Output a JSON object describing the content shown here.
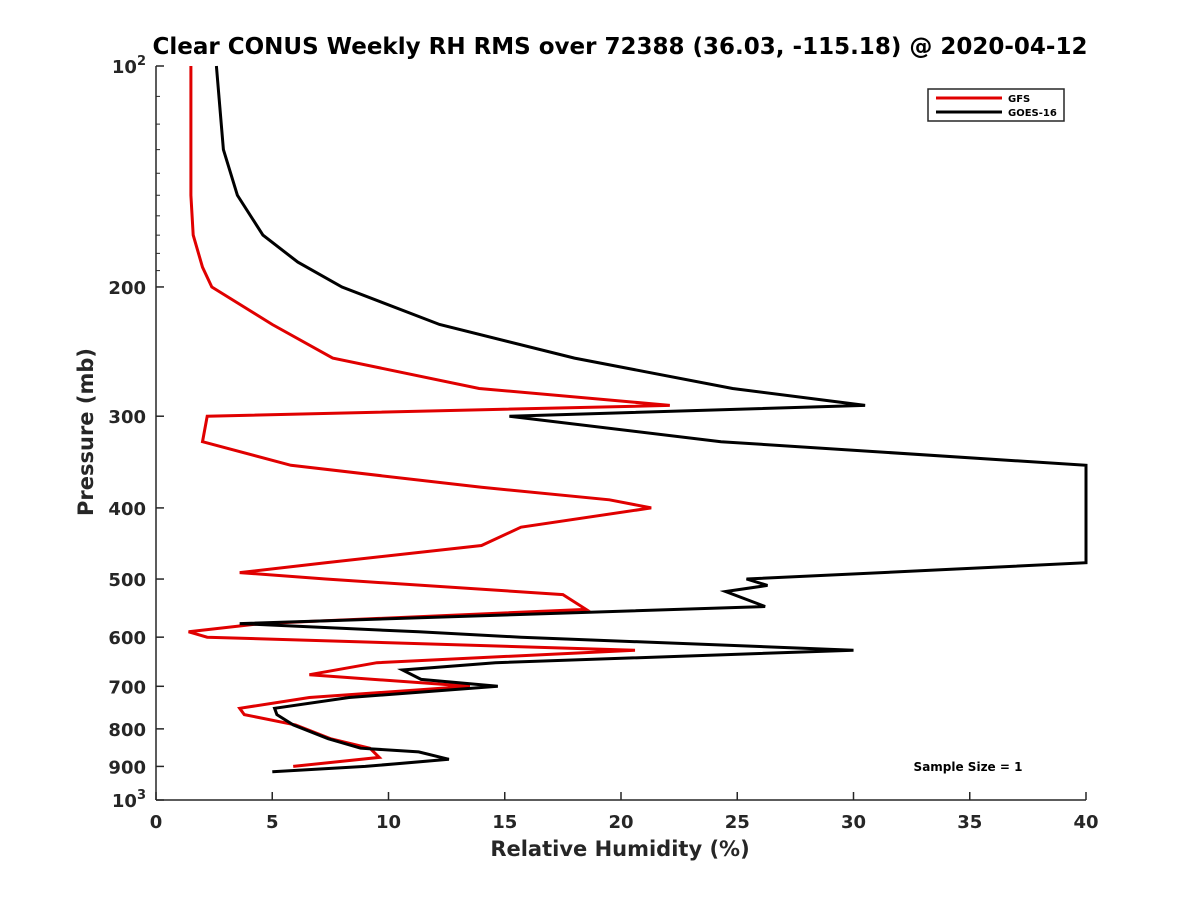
{
  "chart_data": {
    "type": "line",
    "title": "Clear CONUS Weekly RH RMS over 72388 (36.03, -115.18) @ 2020-04-12",
    "xlabel": "Relative Humidity (%)",
    "ylabel": "Pressure (mb)",
    "xlim": [
      0,
      40
    ],
    "ylim": [
      100,
      1000
    ],
    "yscale": "log",
    "y_reversed": true,
    "grid": false,
    "legend_position": "top-right",
    "x_ticks": [
      "0",
      "5",
      "10",
      "15",
      "20",
      "25",
      "30",
      "35",
      "40"
    ],
    "y_ticks": [
      {
        "value": 100,
        "base": "10",
        "exp": "2"
      },
      {
        "value": 200,
        "label": "200"
      },
      {
        "value": 300,
        "label": "300"
      },
      {
        "value": 400,
        "label": "400"
      },
      {
        "value": 500,
        "label": "500"
      },
      {
        "value": 600,
        "label": "600"
      },
      {
        "value": 700,
        "label": "700"
      },
      {
        "value": 800,
        "label": "800"
      },
      {
        "value": 900,
        "label": "900"
      },
      {
        "value": 1000,
        "base": "10",
        "exp": "3"
      }
    ],
    "annotation": "Sample Size = 1",
    "series": [
      {
        "name": "GFS",
        "color": "#e00000",
        "points": [
          {
            "x": 1.5,
            "y": 100
          },
          {
            "x": 1.5,
            "y": 115
          },
          {
            "x": 1.5,
            "y": 130
          },
          {
            "x": 1.5,
            "y": 150
          },
          {
            "x": 1.6,
            "y": 170
          },
          {
            "x": 2.0,
            "y": 188
          },
          {
            "x": 2.4,
            "y": 200
          },
          {
            "x": 5.0,
            "y": 225
          },
          {
            "x": 7.6,
            "y": 250
          },
          {
            "x": 13.9,
            "y": 275
          },
          {
            "x": 22.1,
            "y": 290
          },
          {
            "x": 2.2,
            "y": 300
          },
          {
            "x": 2.0,
            "y": 325
          },
          {
            "x": 5.8,
            "y": 350
          },
          {
            "x": 14.0,
            "y": 375
          },
          {
            "x": 19.5,
            "y": 390
          },
          {
            "x": 21.3,
            "y": 400
          },
          {
            "x": 15.7,
            "y": 425
          },
          {
            "x": 14.0,
            "y": 450
          },
          {
            "x": 7.3,
            "y": 475
          },
          {
            "x": 3.6,
            "y": 490
          },
          {
            "x": 7.3,
            "y": 500
          },
          {
            "x": 17.5,
            "y": 525
          },
          {
            "x": 18.5,
            "y": 550
          },
          {
            "x": 4.5,
            "y": 575
          },
          {
            "x": 1.4,
            "y": 590
          },
          {
            "x": 2.2,
            "y": 600
          },
          {
            "x": 20.6,
            "y": 625
          },
          {
            "x": 9.5,
            "y": 650
          },
          {
            "x": 6.6,
            "y": 675
          },
          {
            "x": 13.5,
            "y": 700
          },
          {
            "x": 6.6,
            "y": 725
          },
          {
            "x": 3.6,
            "y": 750
          },
          {
            "x": 3.8,
            "y": 765
          },
          {
            "x": 6.0,
            "y": 790
          },
          {
            "x": 7.5,
            "y": 825
          },
          {
            "x": 9.2,
            "y": 850
          },
          {
            "x": 9.6,
            "y": 875
          },
          {
            "x": 5.9,
            "y": 900
          }
        ]
      },
      {
        "name": "GOES-16",
        "color": "#000000",
        "points": [
          {
            "x": 2.6,
            "y": 100
          },
          {
            "x": 2.9,
            "y": 130
          },
          {
            "x": 3.5,
            "y": 150
          },
          {
            "x": 4.6,
            "y": 170
          },
          {
            "x": 6.1,
            "y": 185
          },
          {
            "x": 8.0,
            "y": 200
          },
          {
            "x": 12.2,
            "y": 225
          },
          {
            "x": 18.0,
            "y": 250
          },
          {
            "x": 24.8,
            "y": 275
          },
          {
            "x": 30.5,
            "y": 290
          },
          {
            "x": 15.2,
            "y": 300
          },
          {
            "x": 24.3,
            "y": 325
          },
          {
            "x": 40.0,
            "y": 350
          },
          {
            "x": 40.0,
            "y": 475
          },
          {
            "x": 34.2,
            "y": 485
          },
          {
            "x": 25.4,
            "y": 500
          },
          {
            "x": 26.3,
            "y": 510
          },
          {
            "x": 24.5,
            "y": 520
          },
          {
            "x": 26.2,
            "y": 545
          },
          {
            "x": 3.6,
            "y": 575
          },
          {
            "x": 11.3,
            "y": 590
          },
          {
            "x": 15.7,
            "y": 600
          },
          {
            "x": 30.0,
            "y": 625
          },
          {
            "x": 14.6,
            "y": 650
          },
          {
            "x": 10.6,
            "y": 665
          },
          {
            "x": 11.4,
            "y": 685
          },
          {
            "x": 14.7,
            "y": 700
          },
          {
            "x": 8.3,
            "y": 725
          },
          {
            "x": 5.1,
            "y": 750
          },
          {
            "x": 5.2,
            "y": 765
          },
          {
            "x": 5.9,
            "y": 790
          },
          {
            "x": 7.4,
            "y": 825
          },
          {
            "x": 8.8,
            "y": 850
          },
          {
            "x": 11.3,
            "y": 860
          },
          {
            "x": 12.6,
            "y": 880
          },
          {
            "x": 9.0,
            "y": 900
          },
          {
            "x": 5.0,
            "y": 915
          }
        ]
      }
    ]
  }
}
